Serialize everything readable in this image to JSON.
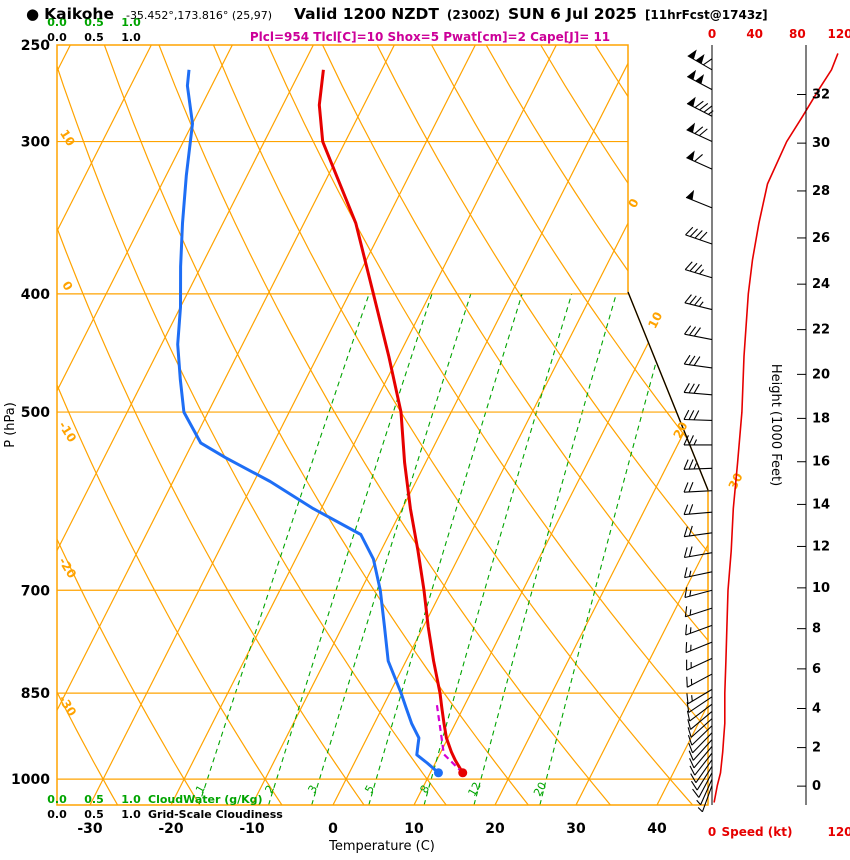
{
  "header": {
    "bullet": "●",
    "station": "Kaikohe",
    "coords": "-35.452°,173.816° (25,97)",
    "valid": "Valid 1200 NZDT",
    "valid_utc": "(2300Z)",
    "valid_date": "SUN 6 Jul 2025",
    "forecast": "[11hrFcst@1743z]",
    "params": "Plcl=954 Tlcl[C]=10 Shox=5 Pwat[cm]=2 Cape[J]= 11"
  },
  "axes": {
    "pressure_label": "P (hPa)",
    "pressure_ticks": [
      250,
      300,
      400,
      500,
      700,
      850,
      1000
    ],
    "temp_label": "Temperature (C)",
    "temp_ticks": [
      -30,
      -20,
      -10,
      0,
      10,
      20,
      30,
      40
    ],
    "height_label": "Height (1000 Feet)",
    "height_ticks": [
      0,
      2,
      4,
      6,
      8,
      10,
      12,
      14,
      16,
      18,
      20,
      22,
      24,
      26,
      28,
      30,
      32
    ],
    "speed_label": "Speed (kt)",
    "speed_ticks_top": [
      0,
      40,
      80,
      120
    ],
    "speed_ticks_bottom": [
      0,
      120
    ]
  },
  "scales": {
    "values": [
      "0.0",
      "0.5",
      "1.0"
    ],
    "cloudwater_label": "CloudWater (g/Kg)",
    "cloudiness_label": "Grid-Scale Cloudiness"
  },
  "chart_data": {
    "type": "skewt-logp",
    "pressure_range_hpa": [
      250,
      1050
    ],
    "isotherm_step_c": 10,
    "adiabat_step_c": 10,
    "isotherm_labels_c": [
      0,
      10,
      20,
      30
    ],
    "adiabat_labels_c": [
      10,
      0,
      -10,
      -20,
      -30
    ],
    "mixing_ratio_lines_gkg": [
      1,
      2,
      3,
      5,
      8,
      12,
      20
    ],
    "temperature_profile": [
      [
        988,
        14
      ],
      [
        965,
        12.3
      ],
      [
        950,
        11.3
      ],
      [
        925,
        9.8
      ],
      [
        900,
        8.6
      ],
      [
        875,
        7.4
      ],
      [
        850,
        6.2
      ],
      [
        800,
        3.4
      ],
      [
        750,
        0.6
      ],
      [
        700,
        -2.2
      ],
      [
        650,
        -5.4
      ],
      [
        600,
        -9.0
      ],
      [
        550,
        -12.6
      ],
      [
        500,
        -16.2
      ],
      [
        450,
        -21.2
      ],
      [
        400,
        -27.0
      ],
      [
        350,
        -33.6
      ],
      [
        300,
        -42.8
      ],
      [
        280,
        -45.5
      ],
      [
        262,
        -47.2
      ]
    ],
    "dewpoint_profile": [
      [
        988,
        11
      ],
      [
        970,
        9
      ],
      [
        955,
        7.2
      ],
      [
        940,
        6.8
      ],
      [
        925,
        6.4
      ],
      [
        900,
        4.6
      ],
      [
        875,
        3.0
      ],
      [
        850,
        1.4
      ],
      [
        800,
        -2.2
      ],
      [
        750,
        -4.8
      ],
      [
        700,
        -7.6
      ],
      [
        660,
        -10.4
      ],
      [
        630,
        -13.5
      ],
      [
        600,
        -21
      ],
      [
        570,
        -28
      ],
      [
        545,
        -35
      ],
      [
        530,
        -39
      ],
      [
        500,
        -43
      ],
      [
        470,
        -45.5
      ],
      [
        440,
        -48
      ],
      [
        410,
        -50
      ],
      [
        380,
        -52.5
      ],
      [
        350,
        -55
      ],
      [
        320,
        -57.5
      ],
      [
        290,
        -60
      ],
      [
        270,
        -63
      ],
      [
        262,
        -63.8
      ]
    ],
    "parcel_path": [
      [
        988,
        14
      ],
      [
        954,
        10.5
      ],
      [
        925,
        9.2
      ],
      [
        895,
        7.8
      ],
      [
        868,
        6.5
      ]
    ],
    "surface_temperature": {
      "p": 988,
      "t": 14
    },
    "surface_dewpoint": {
      "p": 988,
      "t": 11
    },
    "wind_barbs": [
      [
        1012,
        200,
        5
      ],
      [
        1000,
        204,
        7
      ],
      [
        988,
        208,
        8
      ],
      [
        976,
        212,
        9
      ],
      [
        964,
        215,
        10
      ],
      [
        952,
        218,
        10
      ],
      [
        940,
        220,
        11
      ],
      [
        928,
        222,
        11
      ],
      [
        916,
        224,
        11
      ],
      [
        904,
        226,
        12
      ],
      [
        892,
        228,
        12
      ],
      [
        880,
        230,
        12
      ],
      [
        868,
        233,
        12
      ],
      [
        856,
        236,
        12
      ],
      [
        844,
        239,
        13
      ],
      [
        820,
        242,
        13
      ],
      [
        796,
        245,
        13
      ],
      [
        772,
        248,
        14
      ],
      [
        748,
        250,
        14
      ],
      [
        724,
        252,
        15
      ],
      [
        700,
        255,
        15
      ],
      [
        676,
        258,
        16
      ],
      [
        652,
        260,
        18
      ],
      [
        628,
        262,
        19
      ],
      [
        604,
        265,
        20
      ],
      [
        580,
        267,
        22
      ],
      [
        556,
        268,
        24
      ],
      [
        532,
        270,
        26
      ],
      [
        508,
        272,
        28
      ],
      [
        484,
        275,
        29
      ],
      [
        460,
        278,
        30
      ],
      [
        436,
        281,
        32
      ],
      [
        412,
        284,
        33
      ],
      [
        388,
        287,
        37
      ],
      [
        364,
        289,
        42
      ],
      [
        340,
        292,
        48
      ],
      [
        316,
        294,
        58
      ],
      [
        300,
        295,
        70
      ],
      [
        286,
        297,
        85
      ],
      [
        272,
        298,
        100
      ],
      [
        262,
        300,
        112
      ]
    ],
    "speed_profile_kt": [
      [
        1045,
        2
      ],
      [
        1012,
        5
      ],
      [
        988,
        8
      ],
      [
        950,
        10
      ],
      [
        925,
        11
      ],
      [
        900,
        12
      ],
      [
        850,
        12
      ],
      [
        800,
        13
      ],
      [
        750,
        14
      ],
      [
        700,
        15
      ],
      [
        650,
        18
      ],
      [
        600,
        20
      ],
      [
        550,
        24
      ],
      [
        500,
        28
      ],
      [
        450,
        30
      ],
      [
        400,
        34
      ],
      [
        375,
        38
      ],
      [
        350,
        44
      ],
      [
        325,
        52
      ],
      [
        300,
        70
      ],
      [
        286,
        85
      ],
      [
        272,
        100
      ],
      [
        262,
        112
      ],
      [
        254,
        118
      ]
    ]
  },
  "colors": {
    "orange": "#FFA300",
    "green": "#00A400",
    "red": "#E60000",
    "blue": "#1E6EF5",
    "magenta": "#CC0099",
    "parcel": "#D400D4",
    "black": "#000000"
  }
}
